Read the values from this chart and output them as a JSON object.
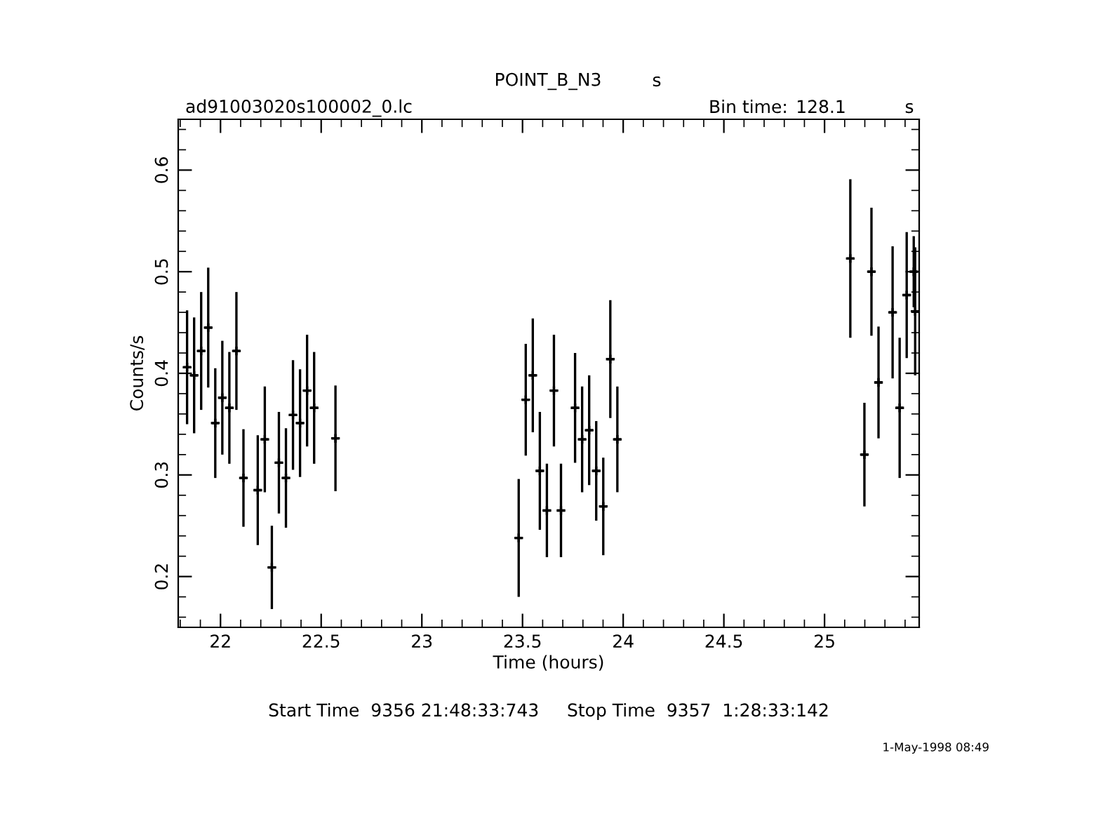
{
  "chart_data": {
    "type": "scatter",
    "title": "POINT_B_N3",
    "xlabel": "Time (hours)",
    "ylabel": "Counts/s",
    "annotations": [
      "s",
      "ad91003020s100002_0.lc",
      "Bin time:",
      "128.1",
      "s",
      "Start Time  9356 21:48:33:743     Stop Time  9357  1:28:33:142",
      "1-May-1998 08:49"
    ],
    "xlim": [
      21.79,
      25.47
    ],
    "ylim": [
      0.15,
      0.65
    ],
    "xticks": [
      22,
      22.5,
      23,
      23.5,
      24,
      24.5,
      25
    ],
    "yticks": [
      0.2,
      0.3,
      0.4,
      0.5,
      0.6
    ],
    "grid": false,
    "legend": false,
    "marker": "cross",
    "series": [
      {
        "color": "#000000",
        "x": [
          21.834,
          21.869,
          21.904,
          21.939,
          21.974,
          22.009,
          22.044,
          22.079,
          22.114,
          22.185,
          22.22,
          22.255,
          22.29,
          22.325,
          22.36,
          22.395,
          22.43,
          22.465,
          22.571,
          23.481,
          23.516,
          23.551,
          23.586,
          23.621,
          23.656,
          23.691,
          23.761,
          23.796,
          23.831,
          23.866,
          23.901,
          23.936,
          23.971,
          25.128,
          25.198,
          25.233,
          25.268,
          25.338,
          25.373,
          25.408,
          25.443,
          25.45
        ],
        "values": [
          0.406,
          0.398,
          0.422,
          0.445,
          0.351,
          0.376,
          0.366,
          0.422,
          0.297,
          0.285,
          0.335,
          0.209,
          0.312,
          0.297,
          0.359,
          0.351,
          0.383,
          0.366,
          0.336,
          0.238,
          0.374,
          0.398,
          0.304,
          0.265,
          0.383,
          0.265,
          0.366,
          0.335,
          0.344,
          0.304,
          0.269,
          0.414,
          0.335,
          0.513,
          0.32,
          0.5,
          0.391,
          0.46,
          0.366,
          0.477,
          0.5,
          0.461
        ],
        "errors": [
          0.056,
          0.057,
          0.058,
          0.059,
          0.054,
          0.056,
          0.055,
          0.058,
          0.048,
          0.054,
          0.052,
          0.041,
          0.05,
          0.049,
          0.054,
          0.053,
          0.055,
          0.055,
          0.052,
          0.058,
          0.055,
          0.056,
          0.058,
          0.046,
          0.055,
          0.046,
          0.054,
          0.052,
          0.054,
          0.049,
          0.048,
          0.058,
          0.052,
          0.078,
          0.051,
          0.063,
          0.055,
          0.065,
          0.069,
          0.062,
          0.035,
          0.063
        ],
        "xerrors": [
          0.0178,
          0.0178,
          0.0178,
          0.0178,
          0.0178,
          0.0178,
          0.0178,
          0.0178,
          0.0178,
          0.0178,
          0.0178,
          0.0178,
          0.0178,
          0.0178,
          0.0178,
          0.0178,
          0.0178,
          0.0178,
          0.0178,
          0.0178,
          0.0178,
          0.0178,
          0.0178,
          0.0178,
          0.0178,
          0.0178,
          0.0178,
          0.0178,
          0.0178,
          0.0178,
          0.0178,
          0.0178,
          0.0178,
          0.0178,
          0.0178,
          0.0178,
          0.0178,
          0.0178,
          0.0178,
          0.0178,
          0.0178,
          0.0178
        ]
      }
    ]
  }
}
